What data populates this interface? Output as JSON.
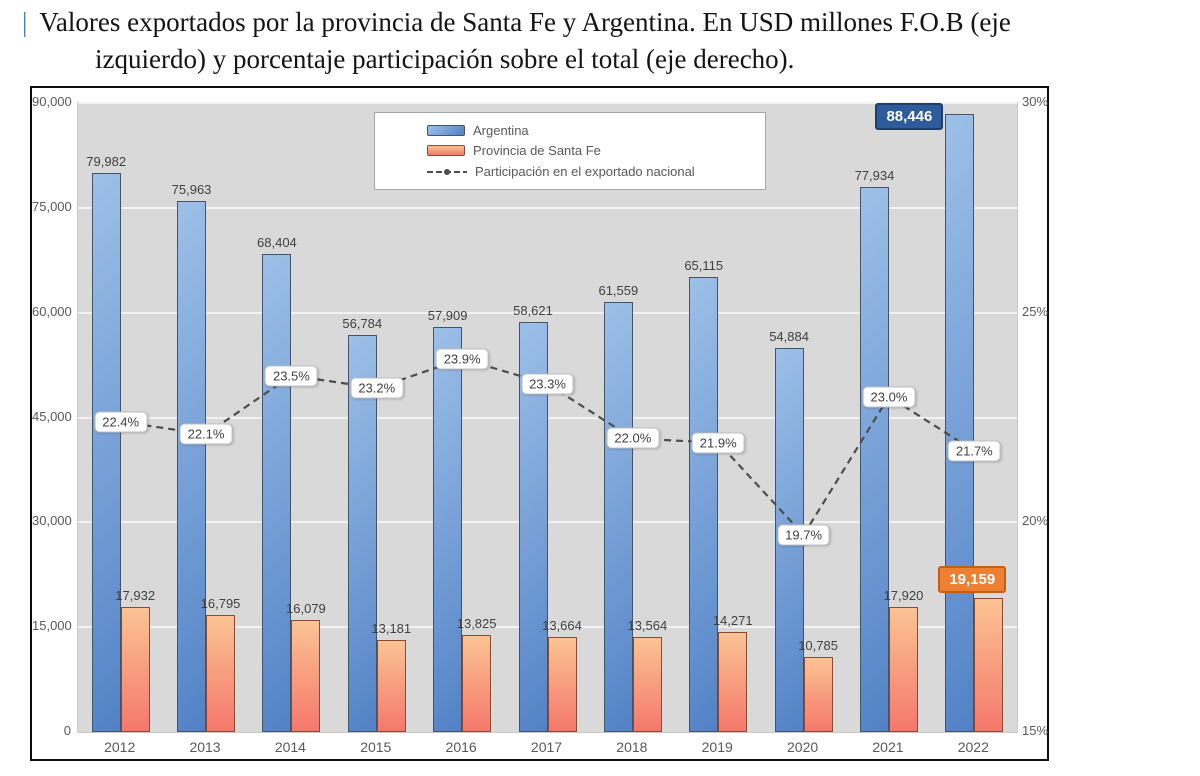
{
  "title": {
    "marker": "|",
    "line1": "Valores exportados por la provincia de Santa Fe y Argentina. En USD millones F.O.B (eje",
    "line2": "izquierdo) y porcentaje participación sobre el total (eje derecho)."
  },
  "legend": {
    "items": [
      {
        "label": "Argentina",
        "swatch": "argentina"
      },
      {
        "label": "Provincia de Santa Fe",
        "swatch": "santafe"
      },
      {
        "label": "Participación en el exportado nacional",
        "swatch": "line"
      }
    ]
  },
  "chart_data": {
    "type": "bar",
    "categories": [
      "2012",
      "2013",
      "2014",
      "2015",
      "2016",
      "2017",
      "2018",
      "2019",
      "2020",
      "2021",
      "2022"
    ],
    "series": [
      {
        "name": "Argentina",
        "type": "bar",
        "axis": "left",
        "values": [
          79982,
          75963,
          68404,
          56784,
          57909,
          58621,
          61559,
          65115,
          54884,
          77934,
          88446
        ],
        "labels": [
          "79,982",
          "75,963",
          "68,404",
          "56,784",
          "57,909",
          "58,621",
          "61,559",
          "65,115",
          "54,884",
          "77,934",
          "88,446"
        ]
      },
      {
        "name": "Provincia de Santa Fe",
        "type": "bar",
        "axis": "left",
        "values": [
          17932,
          16795,
          16079,
          13181,
          13825,
          13664,
          13564,
          14271,
          10785,
          17920,
          19159
        ],
        "labels": [
          "17,932",
          "16,795",
          "16,079",
          "13,181",
          "13,825",
          "13,664",
          "13,564",
          "14,271",
          "10,785",
          "17,920",
          "19,159"
        ]
      },
      {
        "name": "Participación en el exportado nacional",
        "type": "line",
        "axis": "right",
        "values": [
          22.4,
          22.1,
          23.5,
          23.2,
          23.9,
          23.3,
          22.0,
          21.9,
          19.7,
          23.0,
          21.7
        ],
        "labels": [
          "22.4%",
          "22.1%",
          "23.5%",
          "23.2%",
          "23.9%",
          "23.3%",
          "22.0%",
          "21.9%",
          "19.7%",
          "23.0%",
          "21.7%"
        ]
      }
    ],
    "left_axis": {
      "min": 0,
      "max": 90000,
      "tick_values": [
        0,
        15000,
        30000,
        45000,
        60000,
        75000,
        90000
      ],
      "ticks": [
        "0",
        "15,000",
        "30,000",
        "45,000",
        "60,000",
        "75,000",
        "90,000"
      ]
    },
    "right_axis": {
      "min": 15,
      "max": 30,
      "tick_values": [
        15,
        20,
        25,
        30
      ],
      "ticks": [
        "15%",
        "20%",
        "25%",
        "30%"
      ]
    },
    "grid": true,
    "legend_position": "top-center",
    "highlight_last_category": true
  },
  "colors": {
    "title_accent": "#4e7cb5",
    "chart_border": "#0d0d0d",
    "plot_bg": "#d9d9d9",
    "gridline": "#f2f2f2",
    "axis_text": "#595959",
    "label_text": "#404040",
    "argentina_top": "#9dc0e8",
    "argentina_bottom": "#5282c6",
    "argentina_border": "#44536a",
    "santafe_top": "#fbc393",
    "santafe_bottom": "#f5786c",
    "santafe_border": "#8a4a33",
    "line_color": "#4d4d4d",
    "pct_bg": "#ffffff",
    "pct_border": "#bfbfbf",
    "hl_arg_bg": "#2e5b9b",
    "hl_arg_border": "#1f3d6d",
    "hl_sf_bg": "#ee8033",
    "hl_sf_border": "#c55f11",
    "legend_border": "#a6a6a6"
  }
}
